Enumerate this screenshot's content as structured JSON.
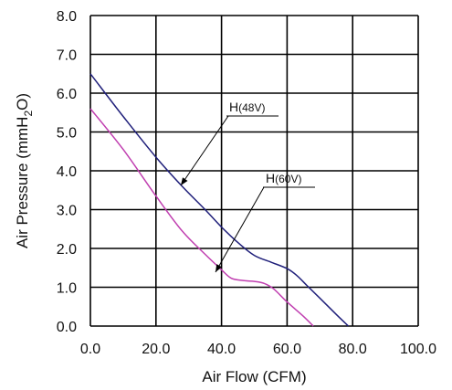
{
  "chart_data": {
    "type": "line",
    "xlabel": "Air Flow (CFM)",
    "ylabel": "Air Pressure (mmH2O)",
    "xlim": [
      0,
      100
    ],
    "ylim": [
      0,
      8
    ],
    "xticks": [
      "0.0",
      "20.0",
      "40.0",
      "60.0",
      "80.0",
      "100.0"
    ],
    "yticks": [
      "0.0",
      "1.0",
      "2.0",
      "3.0",
      "4.0",
      "5.0",
      "6.0",
      "7.0",
      "8.0"
    ],
    "grid": true,
    "series": [
      {
        "name": "H(48V)",
        "label_main": "H",
        "label_sub": "(48V)",
        "color": "#1f1f7a",
        "x": [
          0,
          10,
          20,
          28,
          35,
          40,
          45,
          50,
          55,
          60,
          63,
          66,
          70,
          75,
          78.7
        ],
        "y": [
          6.5,
          5.4,
          4.35,
          3.6,
          3.0,
          2.55,
          2.15,
          1.82,
          1.65,
          1.48,
          1.3,
          1.05,
          0.72,
          0.3,
          0.0
        ]
      },
      {
        "name": "H(60V)",
        "label_main": "H",
        "label_sub": "(60V)",
        "color": "#c03fb0",
        "x": [
          0,
          10,
          20,
          28,
          35,
          40,
          43,
          47,
          50,
          53,
          56,
          60,
          65,
          68
        ],
        "y": [
          5.6,
          4.55,
          3.35,
          2.45,
          1.85,
          1.45,
          1.23,
          1.17,
          1.15,
          1.1,
          0.95,
          0.62,
          0.25,
          0.0
        ]
      }
    ]
  }
}
